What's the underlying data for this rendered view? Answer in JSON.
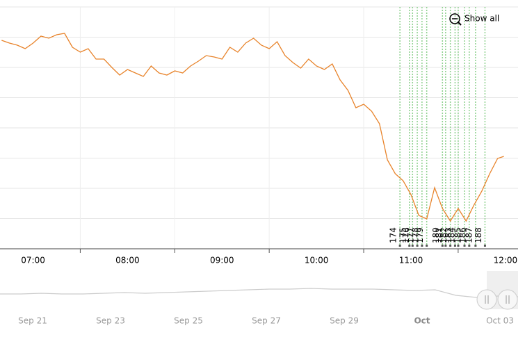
{
  "chart_data": {
    "type": "line",
    "x": [
      "06:40",
      "06:45",
      "06:50",
      "06:55",
      "07:00",
      "07:05",
      "07:10",
      "07:15",
      "07:20",
      "07:25",
      "07:30",
      "07:35",
      "07:40",
      "07:45",
      "07:50",
      "07:55",
      "08:00",
      "08:05",
      "08:10",
      "08:15",
      "08:20",
      "08:25",
      "08:30",
      "08:35",
      "08:40",
      "08:45",
      "08:50",
      "08:55",
      "09:00",
      "09:05",
      "09:10",
      "09:15",
      "09:20",
      "09:25",
      "09:30",
      "09:35",
      "09:40",
      "09:45",
      "09:50",
      "09:55",
      "10:00",
      "10:05",
      "10:10",
      "10:15",
      "10:20",
      "10:25",
      "10:30",
      "10:35",
      "10:40",
      "10:45",
      "10:50",
      "10:55",
      "11:00",
      "11:05",
      "11:10",
      "11:15",
      "11:20",
      "11:25",
      "11:30",
      "11:35",
      "11:40",
      "11:45",
      "11:50",
      "11:55",
      "11:59"
    ],
    "series": [
      {
        "color": "#e8832a",
        "values": [
          300,
          296,
          293,
          288,
          296,
          306,
          303,
          308,
          310,
          290,
          283,
          288,
          273,
          273,
          261,
          250,
          258,
          253,
          248,
          263,
          253,
          250,
          256,
          253,
          263,
          270,
          278,
          276,
          273,
          290,
          283,
          296,
          303,
          293,
          288,
          298,
          278,
          268,
          260,
          273,
          263,
          258,
          266,
          243,
          228,
          203,
          208,
          198,
          180,
          128,
          108,
          98,
          78,
          48,
          43,
          88,
          58,
          40,
          58,
          40,
          63,
          83,
          108,
          130,
          133
        ]
      }
    ],
    "xlim": [
      "06:39",
      "12:08"
    ],
    "ylim": [
      0,
      348
    ],
    "xticks": [
      "07:00",
      "08:00",
      "09:00",
      "10:00",
      "11:00",
      "12:00"
    ],
    "grid": true,
    "events": [
      {
        "label": "174",
        "x": "10:53"
      },
      {
        "label": "175",
        "x": "10:59"
      },
      {
        "label": "176",
        "x": "11:01"
      },
      {
        "label": "177",
        "x": "11:04"
      },
      {
        "label": "178",
        "x": "11:07"
      },
      {
        "label": "179",
        "x": "11:10"
      },
      {
        "label": "180",
        "x": "11:20"
      },
      {
        "label": "181",
        "x": "11:22"
      },
      {
        "label": "182",
        "x": "11:25"
      },
      {
        "label": "183",
        "x": "11:28"
      },
      {
        "label": "184",
        "x": "11:30"
      },
      {
        "label": "185",
        "x": "11:34"
      },
      {
        "label": "186",
        "x": "11:37"
      },
      {
        "label": "187",
        "x": "11:41"
      },
      {
        "label": "188",
        "x": "11:47"
      }
    ],
    "event_color": "#8fd18f",
    "button": "Show all",
    "navigator": {
      "labels": [
        "Sep 21",
        "Sep 23",
        "Sep 25",
        "Sep 27",
        "Sep 29",
        "Oct",
        "Oct 03"
      ],
      "values": [
        12,
        12,
        13,
        12,
        12,
        13,
        14,
        13,
        14,
        15,
        16,
        17,
        18,
        19,
        19,
        20,
        19,
        19,
        19,
        18,
        17,
        18,
        10,
        7,
        9,
        8
      ],
      "ylim": [
        0,
        40
      ]
    }
  }
}
